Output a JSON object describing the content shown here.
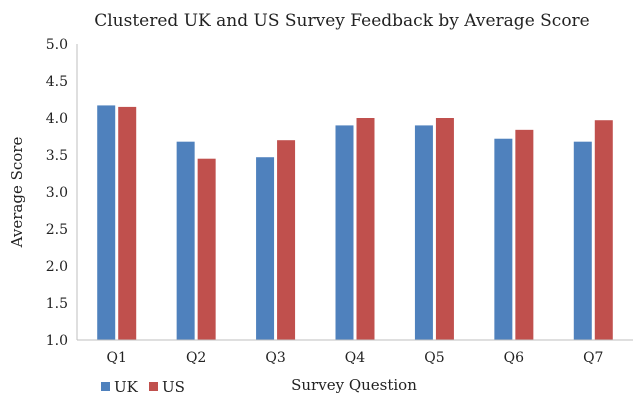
{
  "chart_data": {
    "type": "bar",
    "title": "Clustered UK and US Survey Feedback by Average Score",
    "xlabel": "Survey Question",
    "ylabel": "Average Score",
    "categories": [
      "Q1",
      "Q2",
      "Q3",
      "Q4",
      "Q5",
      "Q6",
      "Q7"
    ],
    "series": [
      {
        "name": "UK",
        "color": "#4f81bd",
        "values": [
          4.17,
          3.68,
          3.47,
          3.9,
          3.9,
          3.72,
          3.68
        ]
      },
      {
        "name": "US",
        "color": "#c0504d",
        "values": [
          4.15,
          3.45,
          3.7,
          4.0,
          4.0,
          3.84,
          3.97
        ]
      }
    ],
    "ylim": [
      1.0,
      5.0
    ],
    "yticks": [
      "1.0",
      "1.5",
      "2.0",
      "2.5",
      "3.0",
      "3.5",
      "4.0",
      "4.5",
      "5.0"
    ],
    "grid": false,
    "legend_position": "bottom-left"
  }
}
